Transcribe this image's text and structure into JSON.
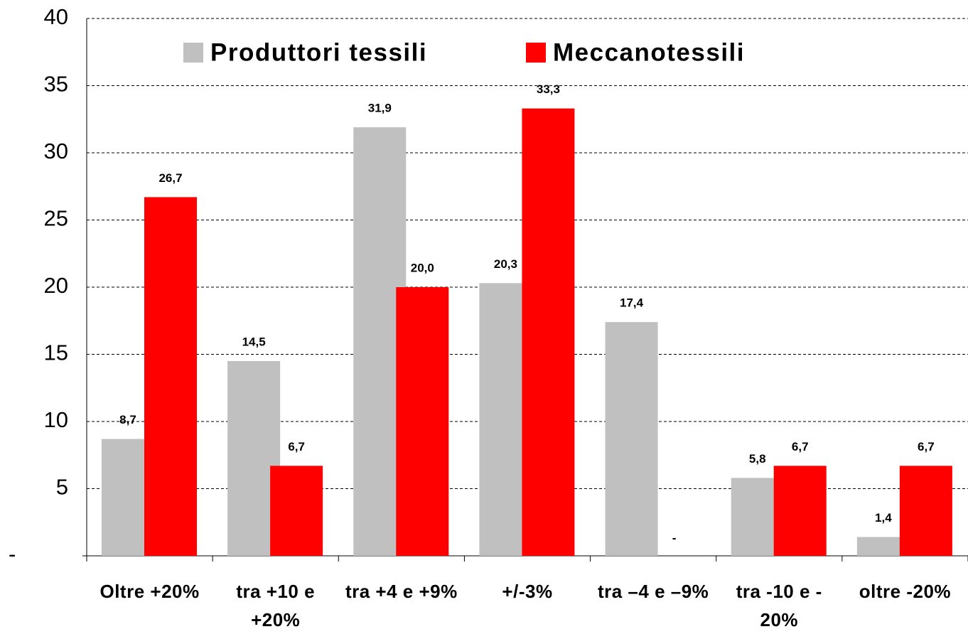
{
  "chart_data": {
    "type": "bar",
    "categories": [
      "Oltre +20%",
      "tra +10 e +20%",
      "tra +4 e +9%",
      "+/-3%",
      "tra –4 e –9%",
      "tra -10 e - 20%",
      "oltre -20%"
    ],
    "series": [
      {
        "name": "Produttori tessili",
        "color": "#c0c0c0",
        "values": [
          8.7,
          14.5,
          31.9,
          20.3,
          17.4,
          5.8,
          1.4
        ],
        "value_labels": [
          "8,7",
          "14,5",
          "31,9",
          "20,3",
          "17,4",
          "5,8",
          "1,4"
        ]
      },
      {
        "name": "Meccanotessili",
        "color": "#ff0000",
        "values": [
          26.7,
          6.7,
          20.0,
          33.3,
          0,
          6.7,
          6.7
        ],
        "value_labels": [
          "26,7",
          "6,7",
          "20,0",
          "33,3",
          "-",
          "6,7",
          "6,7"
        ]
      }
    ],
    "ylim": [
      0,
      40
    ],
    "yticks": [
      {
        "value": 0,
        "label": "-"
      },
      5,
      10,
      15,
      20,
      25,
      30,
      35,
      40
    ],
    "grid": true,
    "legend": "top"
  }
}
